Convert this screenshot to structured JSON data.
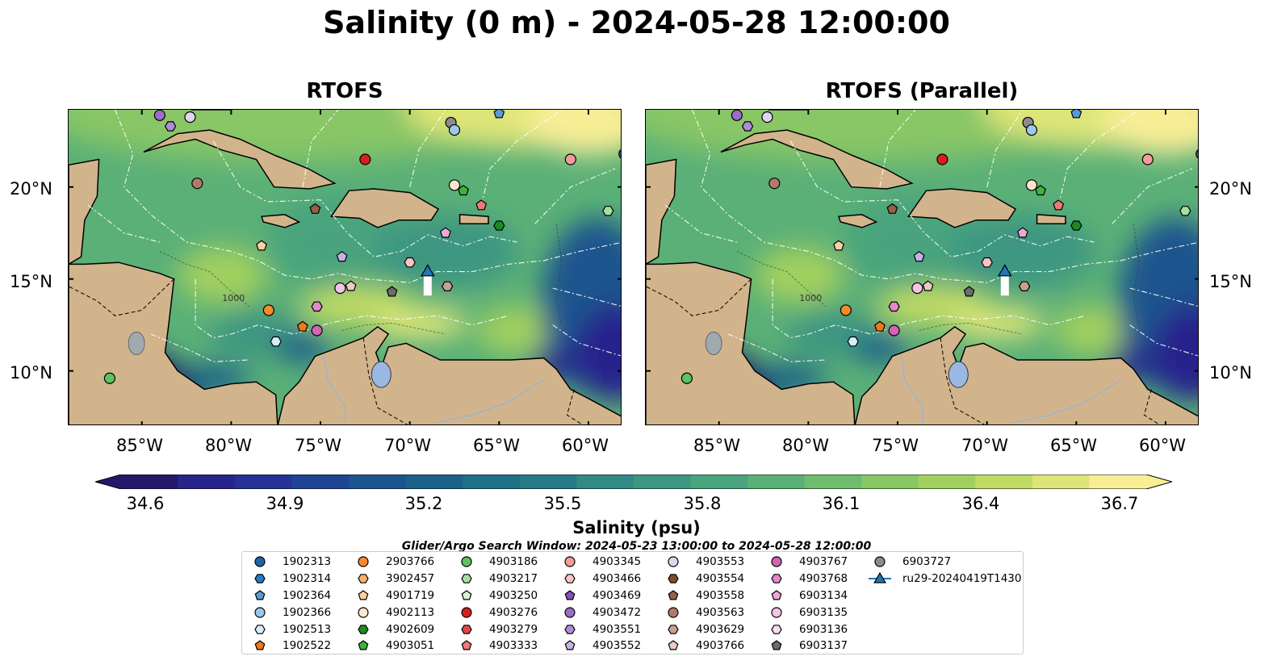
{
  "figure": {
    "title": "Salinity (0 m) - 2024-05-28 12:00:00",
    "panels": [
      {
        "title": "RTOFS"
      },
      {
        "title": "RTOFS (Parallel)"
      }
    ],
    "lat_ticks": [
      "20°N",
      "15°N",
      "10°N"
    ],
    "lon_ticks": [
      "85°W",
      "80°W",
      "75°W",
      "70°W",
      "65°W",
      "60°W"
    ],
    "contour_labels": [
      "1000"
    ],
    "colorbar": {
      "label": "Salinity (psu)",
      "ticks": [
        "34.6",
        "34.9",
        "35.2",
        "35.5",
        "35.8",
        "36.1",
        "36.4",
        "36.7"
      ],
      "min": 34.6,
      "max": 36.7,
      "colors": [
        "#24186c",
        "#27248c",
        "#253399",
        "#1f4494",
        "#1b548e",
        "#1c618a",
        "#207088",
        "#277b86",
        "#318a85",
        "#3c9681",
        "#4aa47d",
        "#5bb077",
        "#70bc6f",
        "#88c666",
        "#a2d05f",
        "#c0db63",
        "#dde578",
        "#f8ee95"
      ]
    },
    "search_window": "Glider/Argo Search Window: 2024-05-23 13:00:00 to 2024-05-28 12:00:00",
    "legend": [
      {
        "id": "1902313",
        "color": "#1f64a8",
        "marker": "circle"
      },
      {
        "id": "1902314",
        "color": "#2b78c4",
        "marker": "hexagon"
      },
      {
        "id": "1902364",
        "color": "#5a9ad4",
        "marker": "pentagon"
      },
      {
        "id": "1902366",
        "color": "#9cc7ea",
        "marker": "circle"
      },
      {
        "id": "1902513",
        "color": "#d6ecf8",
        "marker": "hexagon"
      },
      {
        "id": "1902522",
        "color": "#f07818",
        "marker": "pentagon"
      },
      {
        "id": "2903766",
        "color": "#f78a2a",
        "marker": "circle"
      },
      {
        "id": "3902457",
        "color": "#fbb06c",
        "marker": "hexagon"
      },
      {
        "id": "4901719",
        "color": "#fcd0a0",
        "marker": "pentagon"
      },
      {
        "id": "4902113",
        "color": "#fde6cc",
        "marker": "circle"
      },
      {
        "id": "4902609",
        "color": "#1e8a22",
        "marker": "hexagon"
      },
      {
        "id": "4903051",
        "color": "#3cb43c",
        "marker": "pentagon"
      },
      {
        "id": "4903186",
        "color": "#5cc45c",
        "marker": "circle"
      },
      {
        "id": "4903217",
        "color": "#a4e0a0",
        "marker": "hexagon"
      },
      {
        "id": "4903250",
        "color": "#d8f4d4",
        "marker": "pentagon"
      },
      {
        "id": "4903276",
        "color": "#d81e1e",
        "marker": "circle"
      },
      {
        "id": "4903279",
        "color": "#e04848",
        "marker": "hexagon"
      },
      {
        "id": "4903333",
        "color": "#f07878",
        "marker": "pentagon"
      },
      {
        "id": "4903345",
        "color": "#f49c9c",
        "marker": "circle"
      },
      {
        "id": "4903466",
        "color": "#f8c4c4",
        "marker": "hexagon"
      },
      {
        "id": "4903469",
        "color": "#8450b8",
        "marker": "pentagon"
      },
      {
        "id": "4903472",
        "color": "#9c6cc8",
        "marker": "circle"
      },
      {
        "id": "4903551",
        "color": "#b08cd8",
        "marker": "hexagon"
      },
      {
        "id": "4903552",
        "color": "#c8b0e4",
        "marker": "pentagon"
      },
      {
        "id": "4903553",
        "color": "#e0d4f0",
        "marker": "circle"
      },
      {
        "id": "4903554",
        "color": "#7a4a30",
        "marker": "hexagon"
      },
      {
        "id": "4903558",
        "color": "#946048",
        "marker": "pentagon"
      },
      {
        "id": "4903563",
        "color": "#b07c68",
        "marker": "circle"
      },
      {
        "id": "4903629",
        "color": "#c8a090",
        "marker": "hexagon"
      },
      {
        "id": "4903766",
        "color": "#e8ccc0",
        "marker": "pentagon"
      },
      {
        "id": "4903767",
        "color": "#d464b4",
        "marker": "circle"
      },
      {
        "id": "4903768",
        "color": "#e488c8",
        "marker": "hexagon"
      },
      {
        "id": "6903134",
        "color": "#f0a8d8",
        "marker": "pentagon"
      },
      {
        "id": "6903135",
        "color": "#f4c4e4",
        "marker": "circle"
      },
      {
        "id": "6903136",
        "color": "#f8dcf0",
        "marker": "hexagon"
      },
      {
        "id": "6903137",
        "color": "#6c6c6c",
        "marker": "pentagon"
      },
      {
        "id": "6903727",
        "color": "#8c8c8c",
        "marker": "circle"
      },
      {
        "id": "ru29-20240419T1430",
        "color": "#1f77b4",
        "marker": "triangle-line"
      }
    ],
    "floats_on_map": [
      {
        "id": "1902313",
        "lon": -58.0,
        "lat": 21.8
      },
      {
        "id": "1902364",
        "lon": -65.0,
        "lat": 24.0
      },
      {
        "id": "1902513",
        "lon": -77.5,
        "lat": 11.6
      },
      {
        "id": "1902522",
        "lon": -76.0,
        "lat": 12.4
      },
      {
        "id": "2903766",
        "lon": -77.9,
        "lat": 13.3
      },
      {
        "id": "4901719",
        "lon": -78.3,
        "lat": 16.8
      },
      {
        "id": "4902113",
        "lon": -67.5,
        "lat": 20.1
      },
      {
        "id": "4903051",
        "lon": -67.0,
        "lat": 19.8
      },
      {
        "id": "4903186",
        "lon": -86.8,
        "lat": 9.6
      },
      {
        "id": "4902609",
        "lon": -65.0,
        "lat": 17.9
      },
      {
        "id": "4903217",
        "lon": -58.9,
        "lat": 18.7
      },
      {
        "id": "4903276",
        "lon": -72.5,
        "lat": 21.5
      },
      {
        "id": "4903333",
        "lon": -66.0,
        "lat": 19.0
      },
      {
        "id": "4903345",
        "lon": -61.0,
        "lat": 21.5
      },
      {
        "id": "4903466",
        "lon": -70.0,
        "lat": 15.9
      },
      {
        "id": "4903552",
        "lon": -73.8,
        "lat": 16.2
      },
      {
        "id": "4903563",
        "lon": -81.9,
        "lat": 20.2
      },
      {
        "id": "4903558",
        "lon": -75.3,
        "lat": 18.8
      },
      {
        "id": "4903629",
        "lon": -67.9,
        "lat": 14.6
      },
      {
        "id": "4903766",
        "lon": -73.3,
        "lat": 14.6
      },
      {
        "id": "4903767",
        "lon": -75.2,
        "lat": 12.2
      },
      {
        "id": "4903768",
        "lon": -75.2,
        "lat": 13.5
      },
      {
        "id": "4903551",
        "lon": -83.4,
        "lat": 23.3
      },
      {
        "id": "4903472",
        "lon": -84.0,
        "lat": 23.9
      },
      {
        "id": "4903553",
        "lon": -82.3,
        "lat": 23.8
      },
      {
        "id": "6903134",
        "lon": -68.0,
        "lat": 17.5
      },
      {
        "id": "6903135",
        "lon": -73.9,
        "lat": 14.5
      },
      {
        "id": "6903137",
        "lon": -71.0,
        "lat": 14.3
      },
      {
        "id": "6903727",
        "lon": -67.7,
        "lat": 23.5
      },
      {
        "id": "1902366",
        "lon": -67.5,
        "lat": 23.1
      }
    ],
    "glider": {
      "id": "ru29-20240419T1430",
      "lon": -69.0,
      "lat": 15.5
    },
    "extent": {
      "lon_min": -89.1,
      "lon_max": -58.1,
      "lat_min": 7.0,
      "lat_max": 24.2
    }
  }
}
